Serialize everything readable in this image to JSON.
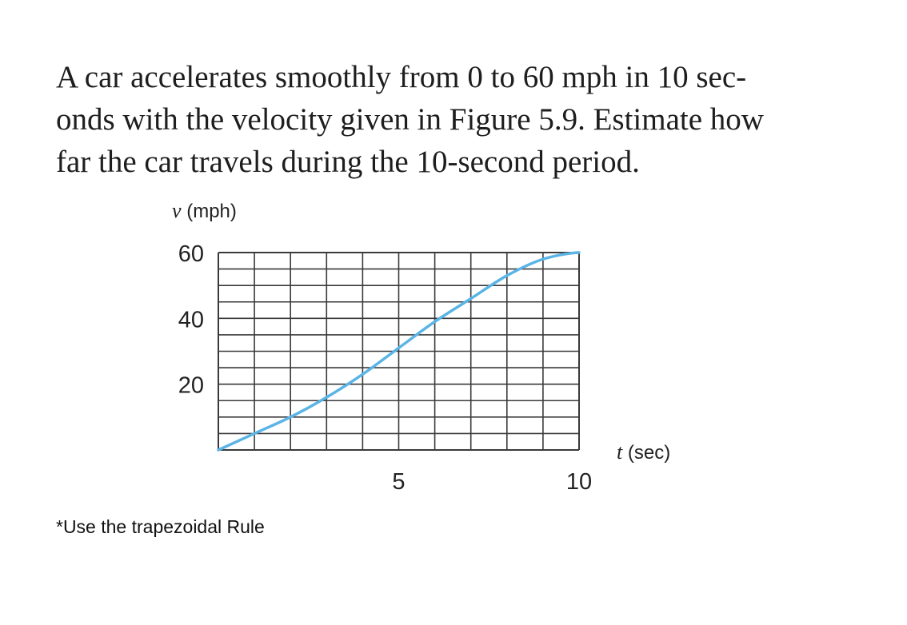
{
  "problem": {
    "lines": [
      "A car accelerates smoothly from 0 to 60 mph in 10 sec-",
      "onds with the velocity given in Figure 5.9. Estimate how",
      "far the car travels during the 10-second period."
    ]
  },
  "note": "*Use the trapezoidal Rule",
  "colors": {
    "curve": "#5ab4e6",
    "grid": "#3a3a3a",
    "text": "#1e1e1e"
  },
  "chart_data": {
    "type": "line",
    "title": "",
    "xlabel": "t (sec)",
    "ylabel": "v (mph)",
    "xlim": [
      0,
      10
    ],
    "ylim": [
      0,
      60
    ],
    "x_ticks": [
      5,
      10
    ],
    "y_ticks": [
      20,
      40,
      60
    ],
    "grid": true,
    "series": [
      {
        "x": [
          0,
          1,
          2,
          3,
          4,
          5,
          6,
          7,
          8,
          9,
          10
        ],
        "values": [
          0,
          5,
          10,
          16,
          23,
          31,
          39,
          46,
          53,
          58,
          60
        ]
      }
    ]
  }
}
